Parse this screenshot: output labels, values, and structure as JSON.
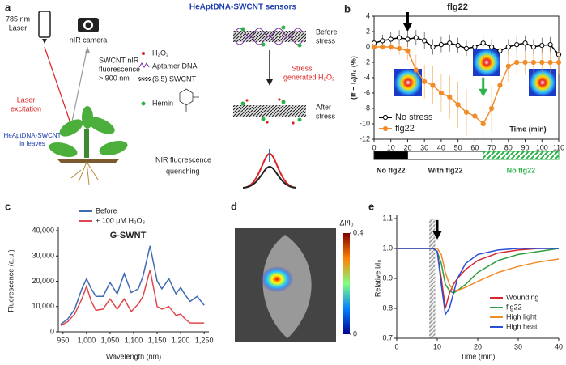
{
  "panel_labels": [
    "a",
    "b",
    "c",
    "d",
    "e"
  ],
  "diagram": {
    "title": "HeAptDNA-SWCNT sensors",
    "laser": [
      "785 nm",
      "Laser"
    ],
    "camera": "nIR camera",
    "emission": [
      "SWCNT nIR",
      "fluorescence",
      "> 900 nm"
    ],
    "excitation": [
      "Laser",
      "excitation"
    ],
    "plant": [
      "HeAptDNA-SWCNT",
      "in leaves"
    ],
    "legend": [
      "H₂O₂",
      "Aptamer DNA",
      "(6,5) SWCNT",
      "Hemin"
    ],
    "before": [
      "Before",
      "stress"
    ],
    "stress_h2o2": [
      "Stress",
      "generated H₂O₂"
    ],
    "after": [
      "After",
      "stress"
    ],
    "quenching": [
      "NIR fluorescence",
      "quenching"
    ]
  },
  "image_panel": {
    "colorbar": {
      "label": "ΔI/I₀",
      "ticks": [
        0,
        0.4
      ]
    }
  },
  "chart_data": [
    {
      "type": "line",
      "title": "flg22",
      "xlabel": "Time (min)",
      "ylabel": "(If − I₀)/I₀ (%)",
      "x": [
        0,
        5,
        10,
        15,
        20,
        25,
        30,
        35,
        40,
        45,
        50,
        55,
        60,
        65,
        70,
        75,
        80,
        85,
        90,
        95,
        100,
        105,
        110
      ],
      "series": [
        {
          "name": "No stress",
          "color": "#000000",
          "filled": false,
          "values": [
            0.5,
            0.8,
            1,
            1.2,
            1,
            1.2,
            0.8,
            0,
            0.3,
            0.5,
            0.2,
            -0.2,
            0,
            0.5,
            0,
            -0.5,
            0,
            0.3,
            0.5,
            0,
            0.2,
            0.3,
            -1
          ],
          "errors": [
            0.8,
            0.8,
            0.9,
            1,
            1,
            1,
            1.1,
            1,
            1,
            1.1,
            1,
            1,
            1,
            1.1,
            1,
            1,
            1,
            1,
            1,
            1,
            1,
            1,
            1
          ]
        },
        {
          "name": "flg22",
          "color": "#f28c28",
          "filled": true,
          "values": [
            0,
            0,
            0,
            -0.2,
            -0.5,
            -3,
            -4.5,
            -5,
            -6,
            -6.5,
            -7.5,
            -8.5,
            -9,
            -10,
            -8,
            -5,
            -2.5,
            -2,
            -2,
            -2,
            -2,
            -2,
            -2
          ],
          "errors": [
            0.3,
            0.4,
            0.5,
            0.8,
            1.2,
            2,
            2.2,
            2.5,
            2.5,
            2.8,
            3,
            3,
            3,
            3,
            3,
            2.5,
            2,
            1.5,
            1.5,
            1.5,
            1.5,
            1.5,
            1.5
          ]
        }
      ],
      "xlim": [
        0,
        110
      ],
      "xticks": [
        0,
        10,
        20,
        30,
        40,
        50,
        60,
        70,
        80,
        90,
        100,
        110
      ],
      "ylim": [
        -12,
        4
      ],
      "yticks": [
        4,
        2,
        0,
        -2,
        -4,
        -6,
        -8,
        -10,
        -12
      ],
      "frame": "box",
      "legend": "lower left",
      "arrows": [
        {
          "x": 20,
          "y": 2,
          "color": "#000000"
        },
        {
          "x": 65,
          "y": -6.5,
          "color": "#2db34a"
        }
      ],
      "treatment_bar": [
        {
          "label": "No flg22",
          "start": 0,
          "end": 20,
          "color": "#000000",
          "hatched": false
        },
        {
          "label": "With flg22",
          "start": 20,
          "end": 65,
          "color": "#ffffff",
          "hatched": false
        },
        {
          "label": "No flg22",
          "start": 65,
          "end": 110,
          "color": "#2db34a",
          "hatched": true
        }
      ]
    },
    {
      "type": "line",
      "title": "G-SWNT",
      "xlabel": "Wavelength (nm)",
      "ylabel": "Fluorescence (a.u.)",
      "x": [
        945,
        960,
        975,
        990,
        1000,
        1010,
        1020,
        1035,
        1050,
        1065,
        1080,
        1095,
        1110,
        1120,
        1135,
        1150,
        1160,
        1175,
        1190,
        1200,
        1210,
        1220,
        1235,
        1250
      ],
      "series": [
        {
          "name": "Before",
          "color": "#3e6bb0",
          "values": [
            3000,
            5000,
            9000,
            17000,
            21000,
            17000,
            14000,
            14000,
            19500,
            15000,
            23000,
            15500,
            17000,
            22000,
            34000,
            20000,
            17000,
            21000,
            15000,
            17500,
            14500,
            12000,
            14000,
            10500
          ]
        },
        {
          "name": "+ 100 μM H₂O₂",
          "color": "#e0474c",
          "values": [
            2500,
            4000,
            7000,
            13000,
            18000,
            12000,
            8500,
            9000,
            13000,
            9000,
            13000,
            8000,
            11000,
            14000,
            24500,
            10000,
            9000,
            10000,
            6500,
            7000,
            5000,
            3500,
            3500,
            3500
          ]
        }
      ],
      "xlim": [
        940,
        1260
      ],
      "xticks": [
        950,
        {
          "value": 1000,
          "label": "1,000"
        },
        {
          "value": 1050,
          "label": "1,050"
        },
        {
          "value": 1100,
          "label": "1,100"
        },
        {
          "value": 1150,
          "label": "1,150"
        },
        {
          "value": 1200,
          "label": "1,200"
        },
        {
          "value": 1250,
          "label": "1,250"
        }
      ],
      "ylim": [
        0,
        40000
      ],
      "yticks": [
        0,
        {
          "value": 10000,
          "label": "10,000"
        },
        {
          "value": 20000,
          "label": "20,000"
        },
        {
          "value": 30000,
          "label": "30,000"
        },
        {
          "value": 40000,
          "label": "40,000"
        }
      ],
      "frame": "axes",
      "legend": "top"
    },
    {
      "type": "line",
      "xlabel": "Time (min)",
      "ylabel": "Relative I/I₀",
      "x": [
        0,
        5,
        8,
        9,
        10,
        11,
        12,
        13,
        14,
        15,
        17,
        20,
        25,
        30,
        35,
        40
      ],
      "series": [
        {
          "name": "Wounding",
          "color": "#d9262c",
          "values": [
            1,
            1,
            1,
            1,
            0.99,
            0.9,
            0.8,
            0.85,
            0.88,
            0.9,
            0.93,
            0.96,
            0.985,
            0.995,
            1,
            1
          ]
        },
        {
          "name": "flg22",
          "color": "#2e9e3e",
          "values": [
            1,
            1,
            1,
            1,
            0.99,
            0.95,
            0.88,
            0.86,
            0.85,
            0.86,
            0.88,
            0.92,
            0.96,
            0.98,
            0.99,
            1
          ]
        },
        {
          "name": "High light",
          "color": "#f28c28",
          "values": [
            1,
            1,
            1,
            1,
            1,
            0.98,
            0.92,
            0.88,
            0.86,
            0.86,
            0.87,
            0.89,
            0.92,
            0.94,
            0.955,
            0.965
          ]
        },
        {
          "name": "High heat",
          "color": "#2b4fd8",
          "values": [
            1,
            1,
            1,
            1,
            0.99,
            0.88,
            0.78,
            0.8,
            0.85,
            0.9,
            0.95,
            0.98,
            0.995,
            1,
            1,
            1
          ]
        }
      ],
      "xlim": [
        0,
        40
      ],
      "xticks": [
        0,
        10,
        20,
        30,
        40
      ],
      "ylim": [
        0.7,
        1.1
      ],
      "yticks": [
        0.7,
        0.8,
        0.9,
        {
          "value": 1,
          "label": "1.0"
        },
        1.1
      ],
      "frame": "axes",
      "legend": "lower right",
      "shaded_region": [
        8,
        9.5
      ],
      "arrows": [
        {
          "x": 10,
          "y": 1.03,
          "color": "#000000"
        }
      ]
    }
  ]
}
